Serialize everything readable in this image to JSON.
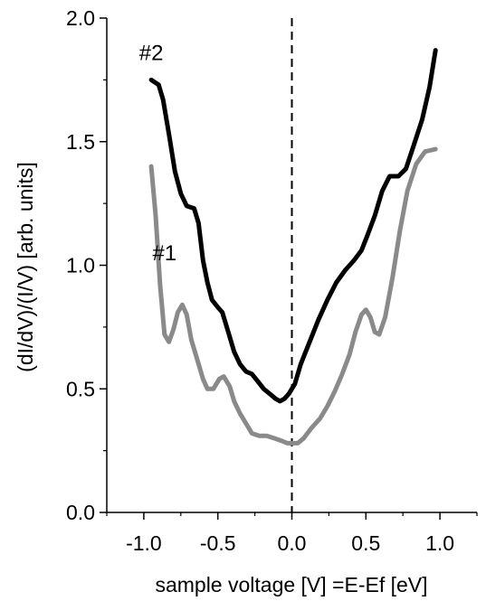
{
  "chart_data": {
    "type": "line",
    "xlabel": "sample voltage [V] =E-Ef [eV]",
    "ylabel": "(dI/dV)/(I/V) [arb. units]",
    "xlim": [
      -1.25,
      1.25
    ],
    "ylim": [
      0.0,
      2.0
    ],
    "x_ticks": [
      -1.0,
      -0.5,
      0.0,
      0.5,
      1.0
    ],
    "x_tick_labels": [
      "-1.0",
      "-0.5",
      "0.0",
      "0.5",
      "1.0"
    ],
    "y_ticks": [
      0.0,
      0.5,
      1.0,
      1.5,
      2.0
    ],
    "y_tick_labels": [
      "0.0",
      "0.5",
      "1.0",
      "1.5",
      "2.0"
    ],
    "grid": false,
    "reference_line": {
      "x": 0.0,
      "style": "dashed"
    },
    "annotations": [
      {
        "text": "#2",
        "x": -0.95,
        "y": 1.86
      },
      {
        "text": "#1",
        "x": -0.86,
        "y": 1.05
      }
    ],
    "series": [
      {
        "name": "#2",
        "color": "#000000",
        "points": [
          [
            -0.95,
            1.75
          ],
          [
            -0.9,
            1.73
          ],
          [
            -0.87,
            1.67
          ],
          [
            -0.83,
            1.53
          ],
          [
            -0.79,
            1.38
          ],
          [
            -0.75,
            1.29
          ],
          [
            -0.71,
            1.24
          ],
          [
            -0.66,
            1.23
          ],
          [
            -0.63,
            1.17
          ],
          [
            -0.6,
            1.02
          ],
          [
            -0.57,
            0.93
          ],
          [
            -0.54,
            0.86
          ],
          [
            -0.5,
            0.83
          ],
          [
            -0.47,
            0.81
          ],
          [
            -0.43,
            0.73
          ],
          [
            -0.39,
            0.65
          ],
          [
            -0.35,
            0.6
          ],
          [
            -0.31,
            0.57
          ],
          [
            -0.27,
            0.56
          ],
          [
            -0.23,
            0.53
          ],
          [
            -0.19,
            0.5
          ],
          [
            -0.15,
            0.48
          ],
          [
            -0.11,
            0.46
          ],
          [
            -0.08,
            0.45
          ],
          [
            -0.05,
            0.46
          ],
          [
            -0.02,
            0.48
          ],
          [
            0.02,
            0.52
          ],
          [
            0.06,
            0.6
          ],
          [
            0.12,
            0.69
          ],
          [
            0.18,
            0.78
          ],
          [
            0.24,
            0.86
          ],
          [
            0.3,
            0.93
          ],
          [
            0.36,
            0.98
          ],
          [
            0.42,
            1.02
          ],
          [
            0.47,
            1.06
          ],
          [
            0.51,
            1.12
          ],
          [
            0.56,
            1.2
          ],
          [
            0.61,
            1.3
          ],
          [
            0.66,
            1.36
          ],
          [
            0.72,
            1.36
          ],
          [
            0.77,
            1.39
          ],
          [
            0.82,
            1.48
          ],
          [
            0.88,
            1.59
          ],
          [
            0.93,
            1.72
          ],
          [
            0.97,
            1.87
          ]
        ]
      },
      {
        "name": "#1",
        "color": "#8a8a8a",
        "points": [
          [
            -0.95,
            1.4
          ],
          [
            -0.92,
            1.2
          ],
          [
            -0.89,
            0.92
          ],
          [
            -0.86,
            0.72
          ],
          [
            -0.83,
            0.69
          ],
          [
            -0.8,
            0.74
          ],
          [
            -0.77,
            0.81
          ],
          [
            -0.74,
            0.84
          ],
          [
            -0.71,
            0.8
          ],
          [
            -0.68,
            0.7
          ],
          [
            -0.64,
            0.62
          ],
          [
            -0.6,
            0.54
          ],
          [
            -0.57,
            0.5
          ],
          [
            -0.53,
            0.5
          ],
          [
            -0.49,
            0.54
          ],
          [
            -0.46,
            0.55
          ],
          [
            -0.42,
            0.51
          ],
          [
            -0.39,
            0.45
          ],
          [
            -0.35,
            0.4
          ],
          [
            -0.31,
            0.36
          ],
          [
            -0.27,
            0.32
          ],
          [
            -0.22,
            0.31
          ],
          [
            -0.17,
            0.31
          ],
          [
            -0.12,
            0.3
          ],
          [
            -0.07,
            0.29
          ],
          [
            -0.03,
            0.28
          ],
          [
            0.01,
            0.28
          ],
          [
            0.04,
            0.28
          ],
          [
            0.08,
            0.3
          ],
          [
            0.13,
            0.34
          ],
          [
            0.19,
            0.38
          ],
          [
            0.24,
            0.43
          ],
          [
            0.29,
            0.49
          ],
          [
            0.34,
            0.56
          ],
          [
            0.39,
            0.64
          ],
          [
            0.43,
            0.73
          ],
          [
            0.47,
            0.8
          ],
          [
            0.5,
            0.82
          ],
          [
            0.53,
            0.79
          ],
          [
            0.56,
            0.73
          ],
          [
            0.59,
            0.72
          ],
          [
            0.63,
            0.79
          ],
          [
            0.68,
            0.95
          ],
          [
            0.73,
            1.14
          ],
          [
            0.78,
            1.3
          ],
          [
            0.84,
            1.41
          ],
          [
            0.9,
            1.46
          ],
          [
            0.97,
            1.47
          ]
        ]
      }
    ]
  }
}
